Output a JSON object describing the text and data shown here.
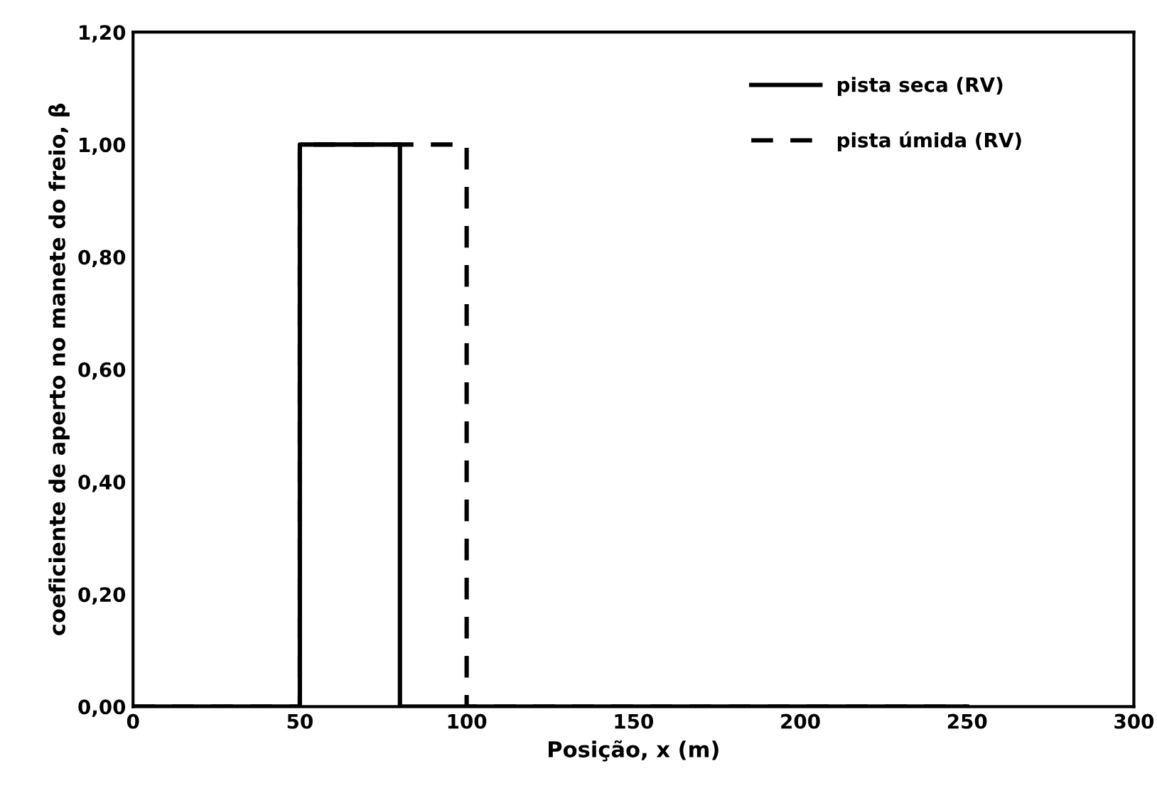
{
  "chart_data": {
    "type": "line",
    "xlabel": "Posição, x (m)",
    "ylabel": "coeficiente de aperto no manete do freio, β",
    "series": [
      {
        "name": "pista seca (RV)",
        "color": "#000000",
        "line_style": "solid",
        "x": [
          0,
          50,
          50,
          80,
          80,
          250
        ],
        "values": [
          0,
          0,
          1,
          1,
          0,
          0
        ]
      },
      {
        "name": "pista úmida (RV)",
        "color": "#000000",
        "line_style": "dashed",
        "x": [
          0,
          50,
          50,
          100,
          100,
          250
        ],
        "values": [
          0,
          0,
          1,
          1,
          0,
          0
        ]
      }
    ],
    "xlim": [
      0,
      300
    ],
    "xticks": [
      0,
      50,
      100,
      150,
      200,
      250,
      300
    ],
    "ylim": [
      0,
      1.2
    ],
    "yticks": [
      {
        "value": 0,
        "label": "0,00"
      },
      {
        "value": 0.2,
        "label": "0,20"
      },
      {
        "value": 0.4,
        "label": "0,40"
      },
      {
        "value": 0.6,
        "label": "0,60"
      },
      {
        "value": 0.8,
        "label": "0,80"
      },
      {
        "value": 1.0,
        "label": "1,00"
      },
      {
        "value": 1.2,
        "label": "1,20"
      }
    ],
    "grid": false,
    "legend": "top right"
  }
}
